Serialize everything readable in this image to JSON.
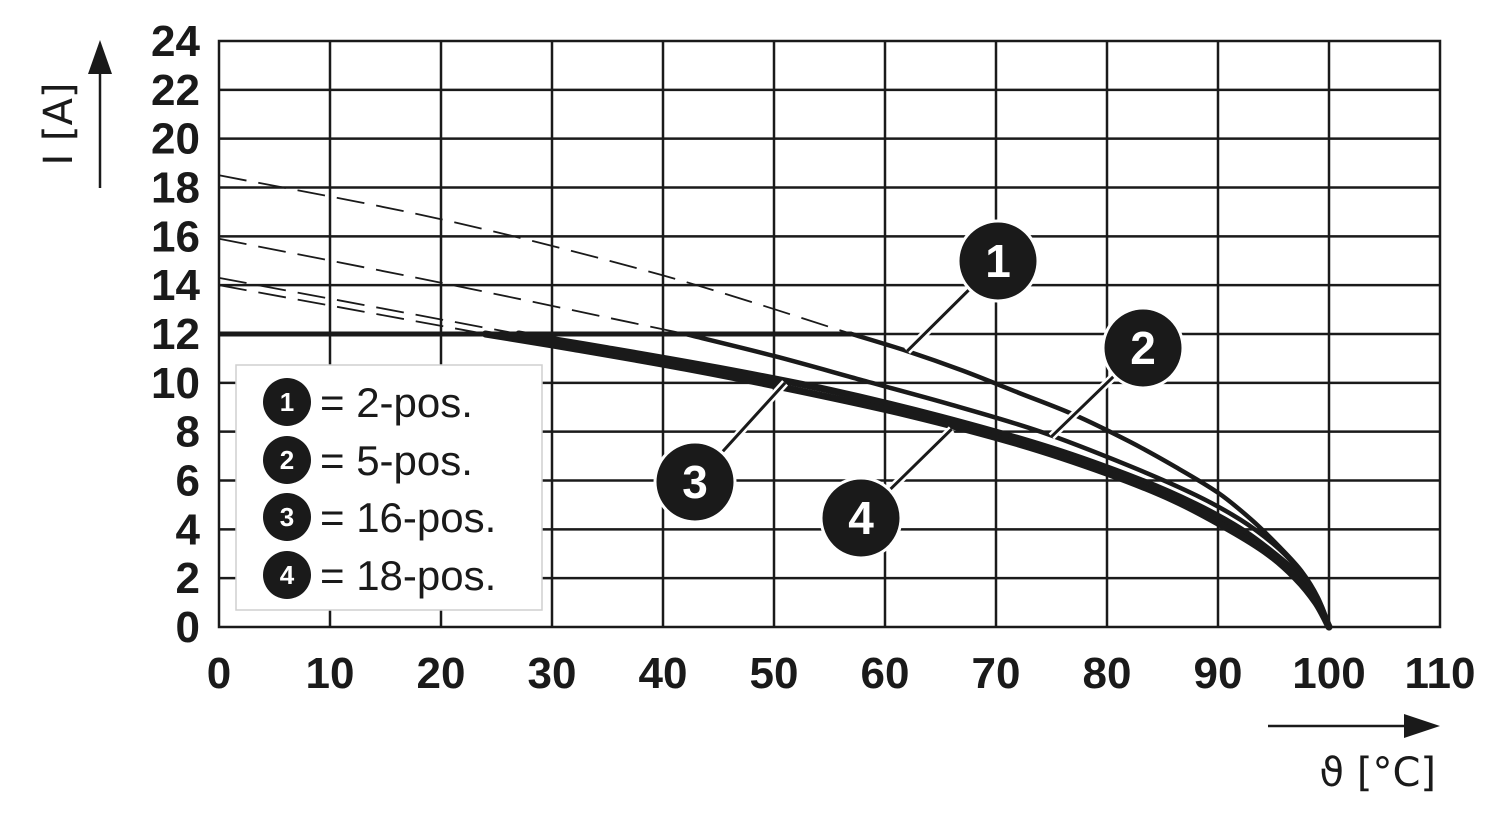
{
  "chart_data": {
    "type": "line",
    "xlabel": "ϑ [°C]",
    "ylabel": "I [A]",
    "xlim": [
      0,
      110
    ],
    "ylim": [
      0,
      24
    ],
    "x_ticks": [
      "0",
      "10",
      "20",
      "30",
      "40",
      "50",
      "60",
      "70",
      "80",
      "90",
      "100",
      "110"
    ],
    "y_ticks": [
      "0",
      "2",
      "4",
      "6",
      "8",
      "10",
      "12",
      "14",
      "16",
      "18",
      "20",
      "22",
      "24"
    ],
    "grid": true,
    "limit_line": {
      "y": 12,
      "x_start": 0
    },
    "series": [
      {
        "name": "1",
        "legend_label": "= 2-pos.",
        "weight": "medium",
        "solid": {
          "x": [
            57,
            62,
            67,
            72,
            77,
            82,
            86,
            90,
            93,
            95.5,
            97.5,
            99,
            100
          ],
          "y": [
            12,
            11.3,
            10.5,
            9.6,
            8.7,
            7.6,
            6.6,
            5.5,
            4.4,
            3.3,
            2.3,
            1.2,
            0
          ]
        },
        "extrapolated": {
          "x": [
            0,
            20,
            40,
            57
          ],
          "y": [
            18.5,
            16.7,
            14.4,
            12
          ]
        }
      },
      {
        "name": "2",
        "legend_label": "= 5-pos.",
        "weight": "medium",
        "solid": {
          "x": [
            42,
            50,
            58,
            66,
            74,
            82,
            88,
            92,
            95,
            97,
            98.5,
            99.4,
            100
          ],
          "y": [
            12,
            11.1,
            10.1,
            9.1,
            8.0,
            6.6,
            5.4,
            4.4,
            3.4,
            2.5,
            1.6,
            0.8,
            0
          ]
        },
        "extrapolated": {
          "x": [
            0,
            20,
            42
          ],
          "y": [
            15.9,
            14.1,
            12
          ]
        }
      },
      {
        "name": "3",
        "legend_label": "= 16-pos.",
        "weight": "bold",
        "solid": {
          "x": [
            27,
            35,
            45,
            55,
            65,
            75,
            83,
            88,
            92,
            95,
            97.5,
            99,
            100
          ],
          "y": [
            12,
            11.4,
            10.6,
            9.7,
            8.6,
            7.3,
            6.0,
            5.0,
            4.0,
            3.0,
            2.0,
            1.0,
            0
          ]
        },
        "extrapolated": {
          "x": [
            0,
            27
          ],
          "y": [
            14.3,
            12
          ]
        }
      },
      {
        "name": "4",
        "legend_label": "= 18-pos.",
        "weight": "bold",
        "solid": {
          "x": [
            24,
            32,
            42,
            52,
            62,
            72,
            80,
            86,
            91,
            94.5,
            97,
            98.8,
            100
          ],
          "y": [
            12,
            11.4,
            10.6,
            9.7,
            8.7,
            7.5,
            6.3,
            5.2,
            4.0,
            3.0,
            2.0,
            1.0,
            0
          ]
        },
        "extrapolated": {
          "x": [
            0,
            24
          ],
          "y": [
            14.0,
            12
          ]
        }
      }
    ],
    "callouts": [
      {
        "label": "1",
        "point": [
          62,
          11.3
        ]
      },
      {
        "label": "2",
        "point": [
          75,
          7.8
        ]
      },
      {
        "label": "3",
        "point": [
          51,
          10.0
        ]
      },
      {
        "label": "4",
        "point": [
          66,
          8.1
        ]
      }
    ],
    "legend_position": "left-middle"
  }
}
